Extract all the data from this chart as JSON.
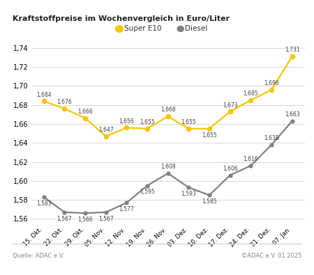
{
  "title": "Kraftstoffpreise im Wochenvergleich in Euro/Liter",
  "labels": [
    "15. Okt.",
    "22. Okt.",
    "29. Okt.",
    "05. Nov.",
    "12. Nov.",
    "19. Nov.",
    "26. Nov.",
    "03. Dez.",
    "10. Dez.",
    "17. Dez.",
    "24. Dez.",
    "31. Dez.",
    "07. Jan."
  ],
  "super_e10": [
    1.684,
    1.676,
    1.666,
    1.647,
    1.656,
    1.655,
    1.668,
    1.655,
    1.655,
    1.673,
    1.685,
    1.696,
    1.731
  ],
  "diesel": [
    1.583,
    1.567,
    1.566,
    1.567,
    1.577,
    1.595,
    1.608,
    1.593,
    1.585,
    1.606,
    1.616,
    1.638,
    1.663
  ],
  "super_color": "#F5C800",
  "diesel_color": "#808080",
  "ylim_min": 1.553,
  "ylim_max": 1.75,
  "yticks": [
    1.56,
    1.58,
    1.6,
    1.62,
    1.64,
    1.66,
    1.68,
    1.7,
    1.72,
    1.74
  ],
  "footer_left": "Quelle: ADAC e.V.",
  "footer_right": "©ADAC e.V. 01.2025",
  "background_color": "#ffffff",
  "grid_color": "#d0d0d0",
  "label_color": "#444444",
  "super_e10_label_above": [
    true,
    true,
    true,
    true,
    true,
    true,
    true,
    true,
    false,
    true,
    true,
    true,
    true
  ],
  "diesel_label_above": [
    false,
    false,
    false,
    false,
    false,
    false,
    true,
    false,
    false,
    true,
    true,
    true,
    true
  ]
}
